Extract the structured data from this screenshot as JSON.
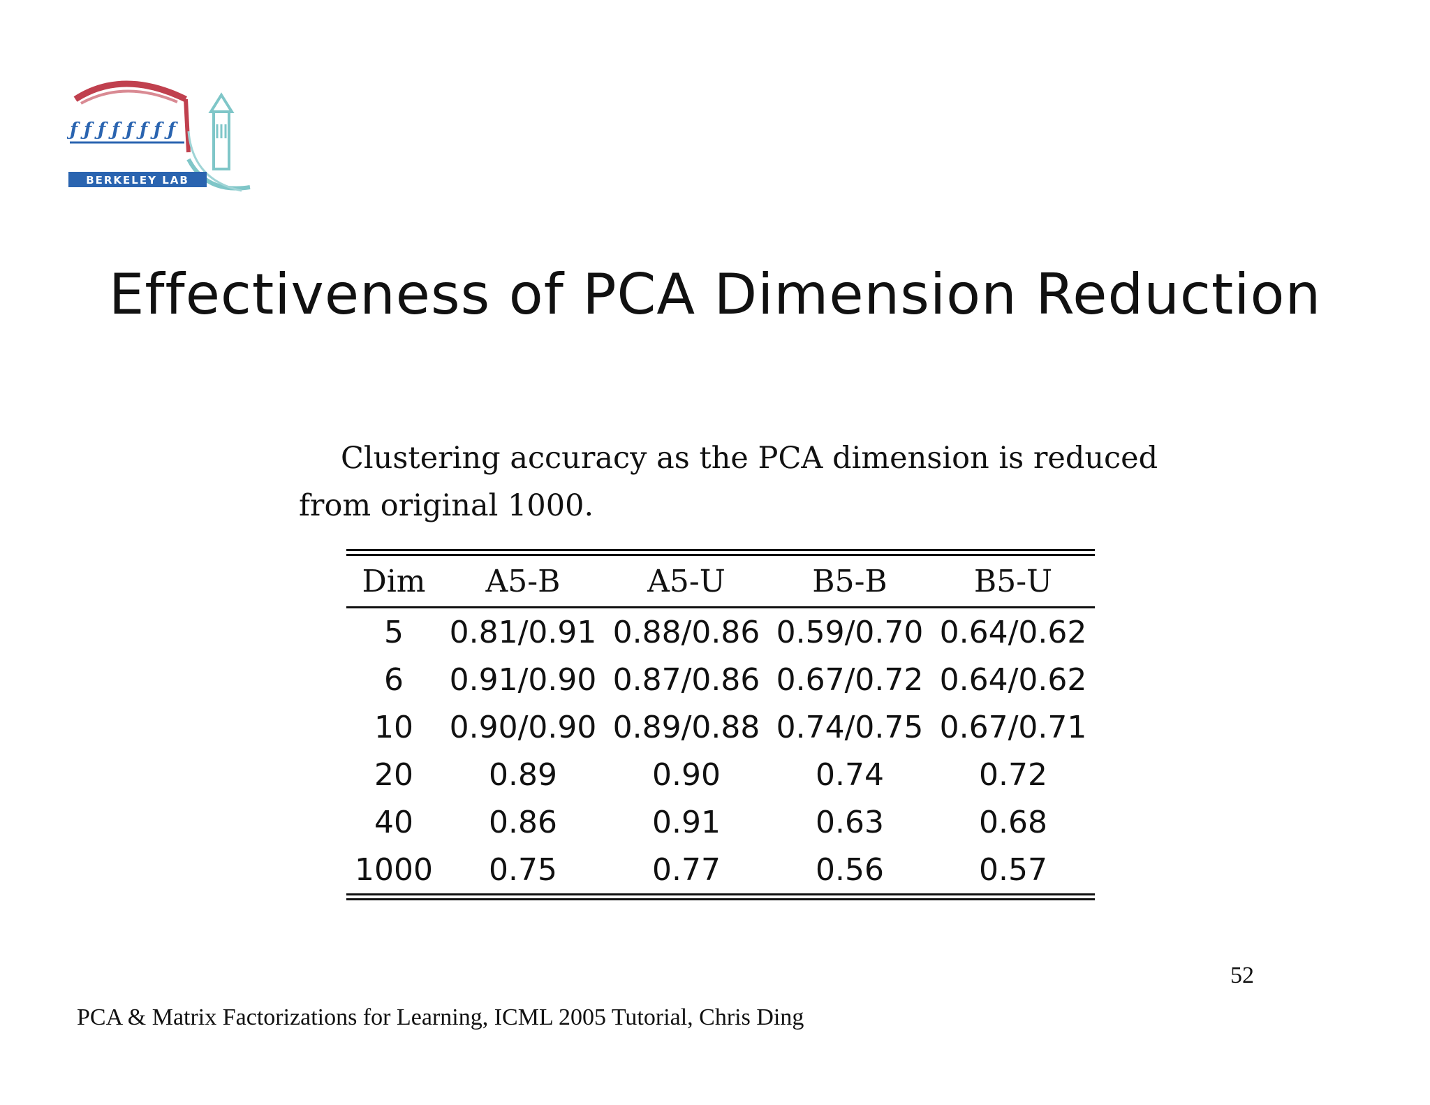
{
  "logo": {
    "text": "BERKELEY LAB"
  },
  "slide": {
    "title": "Effectiveness of PCA Dimension Reduction",
    "caption": "Clustering accuracy as the PCA dimension is reduced from original 1000.",
    "page_number": "52",
    "footer": "PCA & Matrix Factorizations for Learning, ICML 2005 Tutorial, Chris Ding"
  },
  "table": {
    "headers": [
      "Dim",
      "A5-B",
      "A5-U",
      "B5-B",
      "B5-U"
    ],
    "rows": [
      [
        "5",
        "0.81/0.91",
        "0.88/0.86",
        "0.59/0.70",
        "0.64/0.62"
      ],
      [
        "6",
        "0.91/0.90",
        "0.87/0.86",
        "0.67/0.72",
        "0.64/0.62"
      ],
      [
        "10",
        "0.90/0.90",
        "0.89/0.88",
        "0.74/0.75",
        "0.67/0.71"
      ],
      [
        "20",
        "0.89",
        "0.90",
        "0.74",
        "0.72"
      ],
      [
        "40",
        "0.86",
        "0.91",
        "0.63",
        "0.68"
      ],
      [
        "1000",
        "0.75",
        "0.77",
        "0.56",
        "0.57"
      ]
    ]
  },
  "colors": {
    "logo_red": "#c0404e",
    "logo_teal": "#7fc6c8",
    "logo_blue": "#2a64b0",
    "text": "#111111"
  }
}
